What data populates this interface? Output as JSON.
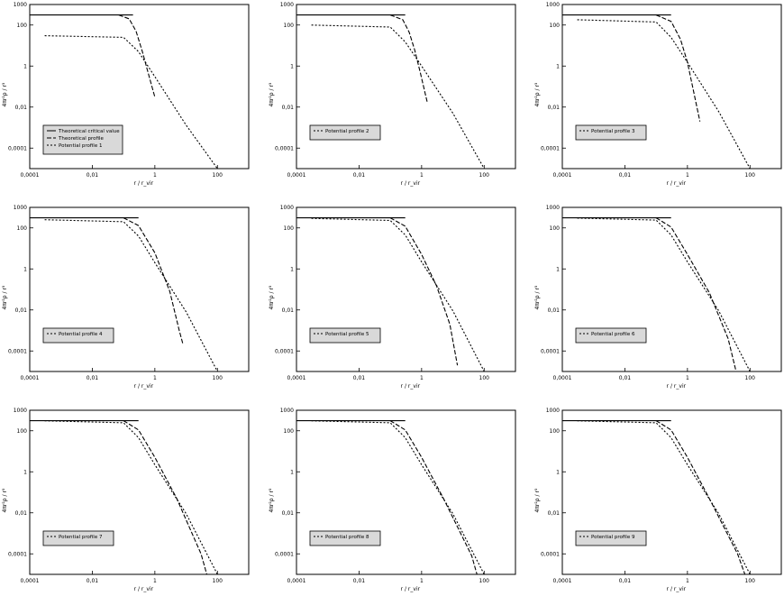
{
  "figure": {
    "panel_count": 9,
    "axes_common": {
      "xlabel": "r / r_vir",
      "ylabel": "4πr²ρ / r³",
      "xscale": "log",
      "yscale": "log",
      "xlim": [
        0.0001,
        1000
      ],
      "ylim": [
        1e-05,
        1000
      ],
      "xticks": [
        "0,0001",
        "0,01",
        "1",
        "100"
      ],
      "yticks": [
        "1000",
        "100",
        "1",
        "0,01",
        "0,0001"
      ],
      "grid": false,
      "legend_placement": "lower-left"
    },
    "colors": {
      "line": "#000000",
      "legend_bg": "#d9d9d9",
      "frame": "#000000"
    }
  },
  "chart_data": [
    {
      "type": "line",
      "panel": 1,
      "xlabel": "r / r_vir",
      "ylabel": "4πr²ρ / r³",
      "xscale": "log",
      "yscale": "log",
      "series": [
        {
          "name": "Theoretical critical value",
          "x": [
            0.0001,
            0.2
          ],
          "y": [
            310,
            310
          ]
        },
        {
          "name": "Theoretical profile",
          "x": [
            0.07,
            0.15,
            0.25,
            0.4,
            0.6,
            1.0
          ],
          "y": [
            310,
            200,
            50,
            5,
            0.5,
            0.03
          ]
        },
        {
          "name": "Potential profile 1",
          "x": [
            0.0003,
            0.1,
            0.3,
            1,
            10,
            100
          ],
          "y": [
            30,
            25,
            5,
            0.3,
            0.0013,
            1e-05
          ]
        }
      ],
      "legend": [
        "Theoretical critical value",
        "Theoretical profile",
        "Potential profile 1"
      ]
    },
    {
      "type": "line",
      "panel": 2,
      "xlabel": "r / r_vir",
      "ylabel": "4πr²ρ / r³",
      "xscale": "log",
      "yscale": "log",
      "series": [
        {
          "name": "Theoretical critical value",
          "x": [
            0.0001,
            0.3
          ],
          "y": [
            310,
            310
          ]
        },
        {
          "name": "Theoretical profile",
          "x": [
            0.1,
            0.25,
            0.4,
            0.6,
            0.9,
            1.5
          ],
          "y": [
            310,
            180,
            45,
            6,
            0.5,
            0.018
          ]
        },
        {
          "name": "Potential profile 2",
          "x": [
            0.0003,
            0.1,
            0.3,
            1,
            10,
            100
          ],
          "y": [
            100,
            80,
            15,
            1,
            0.005,
            1e-05
          ]
        }
      ],
      "legend": [
        "Potential profile 2"
      ]
    },
    {
      "type": "line",
      "panel": 3,
      "xlabel": "r / r_vir",
      "ylabel": "4πr²ρ / r³",
      "xscale": "log",
      "yscale": "log",
      "series": [
        {
          "name": "Theoretical critical value",
          "x": [
            0.0001,
            0.3
          ],
          "y": [
            310,
            310
          ]
        },
        {
          "name": "Theoretical profile",
          "x": [
            0.1,
            0.3,
            0.6,
            1.0,
            1.5,
            2.5
          ],
          "y": [
            310,
            150,
            20,
            1.5,
            0.08,
            0.002
          ]
        },
        {
          "name": "Potential profile 3",
          "x": [
            0.0003,
            0.1,
            0.3,
            1,
            10,
            100
          ],
          "y": [
            180,
            140,
            25,
            1.5,
            0.006,
            1e-05
          ]
        }
      ],
      "legend": [
        "Potential profile 3"
      ]
    },
    {
      "type": "line",
      "panel": 4,
      "xlabel": "r / r_vir",
      "ylabel": "4πr²ρ / r³",
      "xscale": "log",
      "yscale": "log",
      "series": [
        {
          "name": "Theoretical critical value",
          "x": [
            0.0001,
            0.3
          ],
          "y": [
            310,
            310
          ]
        },
        {
          "name": "Theoretical profile",
          "x": [
            0.1,
            0.3,
            1,
            3,
            6,
            8
          ],
          "y": [
            310,
            130,
            6,
            0.08,
            0.001,
            0.0002
          ]
        },
        {
          "name": "Potential profile 4",
          "x": [
            0.0003,
            0.1,
            0.3,
            1,
            10,
            100
          ],
          "y": [
            250,
            200,
            40,
            2,
            0.008,
            1e-05
          ]
        }
      ],
      "legend": [
        "Potential profile 4"
      ]
    },
    {
      "type": "line",
      "panel": 5,
      "xlabel": "r / r_vir",
      "ylabel": "4πr²ρ / r³",
      "xscale": "log",
      "yscale": "log",
      "series": [
        {
          "name": "Theoretical critical value",
          "x": [
            0.0001,
            0.3
          ],
          "y": [
            310,
            310
          ]
        },
        {
          "name": "Theoretical profile",
          "x": [
            0.1,
            0.3,
            1,
            3,
            8,
            14
          ],
          "y": [
            310,
            120,
            5,
            0.15,
            0.002,
            2e-05
          ]
        },
        {
          "name": "Potential profile 5",
          "x": [
            0.0003,
            0.1,
            0.3,
            1,
            10,
            100
          ],
          "y": [
            290,
            230,
            45,
            2.2,
            0.009,
            1e-05
          ]
        }
      ],
      "legend": [
        "Potential profile 5"
      ]
    },
    {
      "type": "line",
      "panel": 6,
      "xlabel": "r / r_vir",
      "ylabel": "4πr²ρ / r³",
      "xscale": "log",
      "yscale": "log",
      "series": [
        {
          "name": "Theoretical critical value",
          "x": [
            0.0001,
            0.3
          ],
          "y": [
            310,
            310
          ]
        },
        {
          "name": "Theoretical profile",
          "x": [
            0.1,
            0.3,
            1,
            5,
            20,
            40
          ],
          "y": [
            310,
            110,
            5,
            0.07,
            0.0004,
            5e-06
          ]
        },
        {
          "name": "Potential profile 6",
          "x": [
            0.0003,
            0.1,
            0.3,
            1,
            10,
            100
          ],
          "y": [
            300,
            240,
            45,
            2.2,
            0.009,
            1e-05
          ]
        }
      ],
      "legend": [
        "Potential profile 6"
      ]
    },
    {
      "type": "line",
      "panel": 7,
      "xlabel": "r / r_vir",
      "ylabel": "4πr²ρ / r³",
      "xscale": "log",
      "yscale": "log",
      "series": [
        {
          "name": "Theoretical critical value",
          "x": [
            0.0001,
            0.3
          ],
          "y": [
            310,
            310
          ]
        },
        {
          "name": "Theoretical profile",
          "x": [
            0.1,
            0.3,
            1,
            5,
            30,
            70
          ],
          "y": [
            310,
            110,
            5,
            0.05,
            0.0001,
            1e-06
          ]
        },
        {
          "name": "Potential profile 7",
          "x": [
            0.0003,
            0.1,
            0.3,
            1,
            10,
            100
          ],
          "y": [
            305,
            245,
            46,
            2.2,
            0.009,
            1e-05
          ]
        }
      ],
      "legend": [
        "Potential profile 7"
      ]
    },
    {
      "type": "line",
      "panel": 8,
      "xlabel": "r / r_vir",
      "ylabel": "4πr²ρ / r³",
      "xscale": "log",
      "yscale": "log",
      "series": [
        {
          "name": "Theoretical critical value",
          "x": [
            0.0001,
            0.3
          ],
          "y": [
            310,
            310
          ]
        },
        {
          "name": "Theoretical profile",
          "x": [
            0.1,
            0.3,
            1,
            5,
            40,
            90
          ],
          "y": [
            310,
            110,
            5,
            0.05,
            8e-05,
            1e-06
          ]
        },
        {
          "name": "Potential profile 8",
          "x": [
            0.0003,
            0.1,
            0.3,
            1,
            10,
            100
          ],
          "y": [
            305,
            245,
            46,
            2.2,
            0.009,
            1e-05
          ]
        }
      ],
      "legend": [
        "Potential profile 8"
      ]
    },
    {
      "type": "line",
      "panel": 9,
      "xlabel": "r / r_vir",
      "ylabel": "4πr²ρ / r³",
      "xscale": "log",
      "yscale": "log",
      "series": [
        {
          "name": "Theoretical critical value",
          "x": [
            0.0001,
            0.3
          ],
          "y": [
            310,
            310
          ]
        },
        {
          "name": "Theoretical profile",
          "x": [
            0.1,
            0.3,
            1,
            5,
            40,
            100
          ],
          "y": [
            310,
            110,
            5,
            0.05,
            0.0001,
            2e-06
          ]
        },
        {
          "name": "Potential profile 9",
          "x": [
            0.0003,
            0.1,
            0.3,
            1,
            10,
            100
          ],
          "y": [
            305,
            245,
            46,
            2.2,
            0.009,
            1e-05
          ]
        }
      ],
      "legend": [
        "Potential profile 9"
      ]
    }
  ]
}
